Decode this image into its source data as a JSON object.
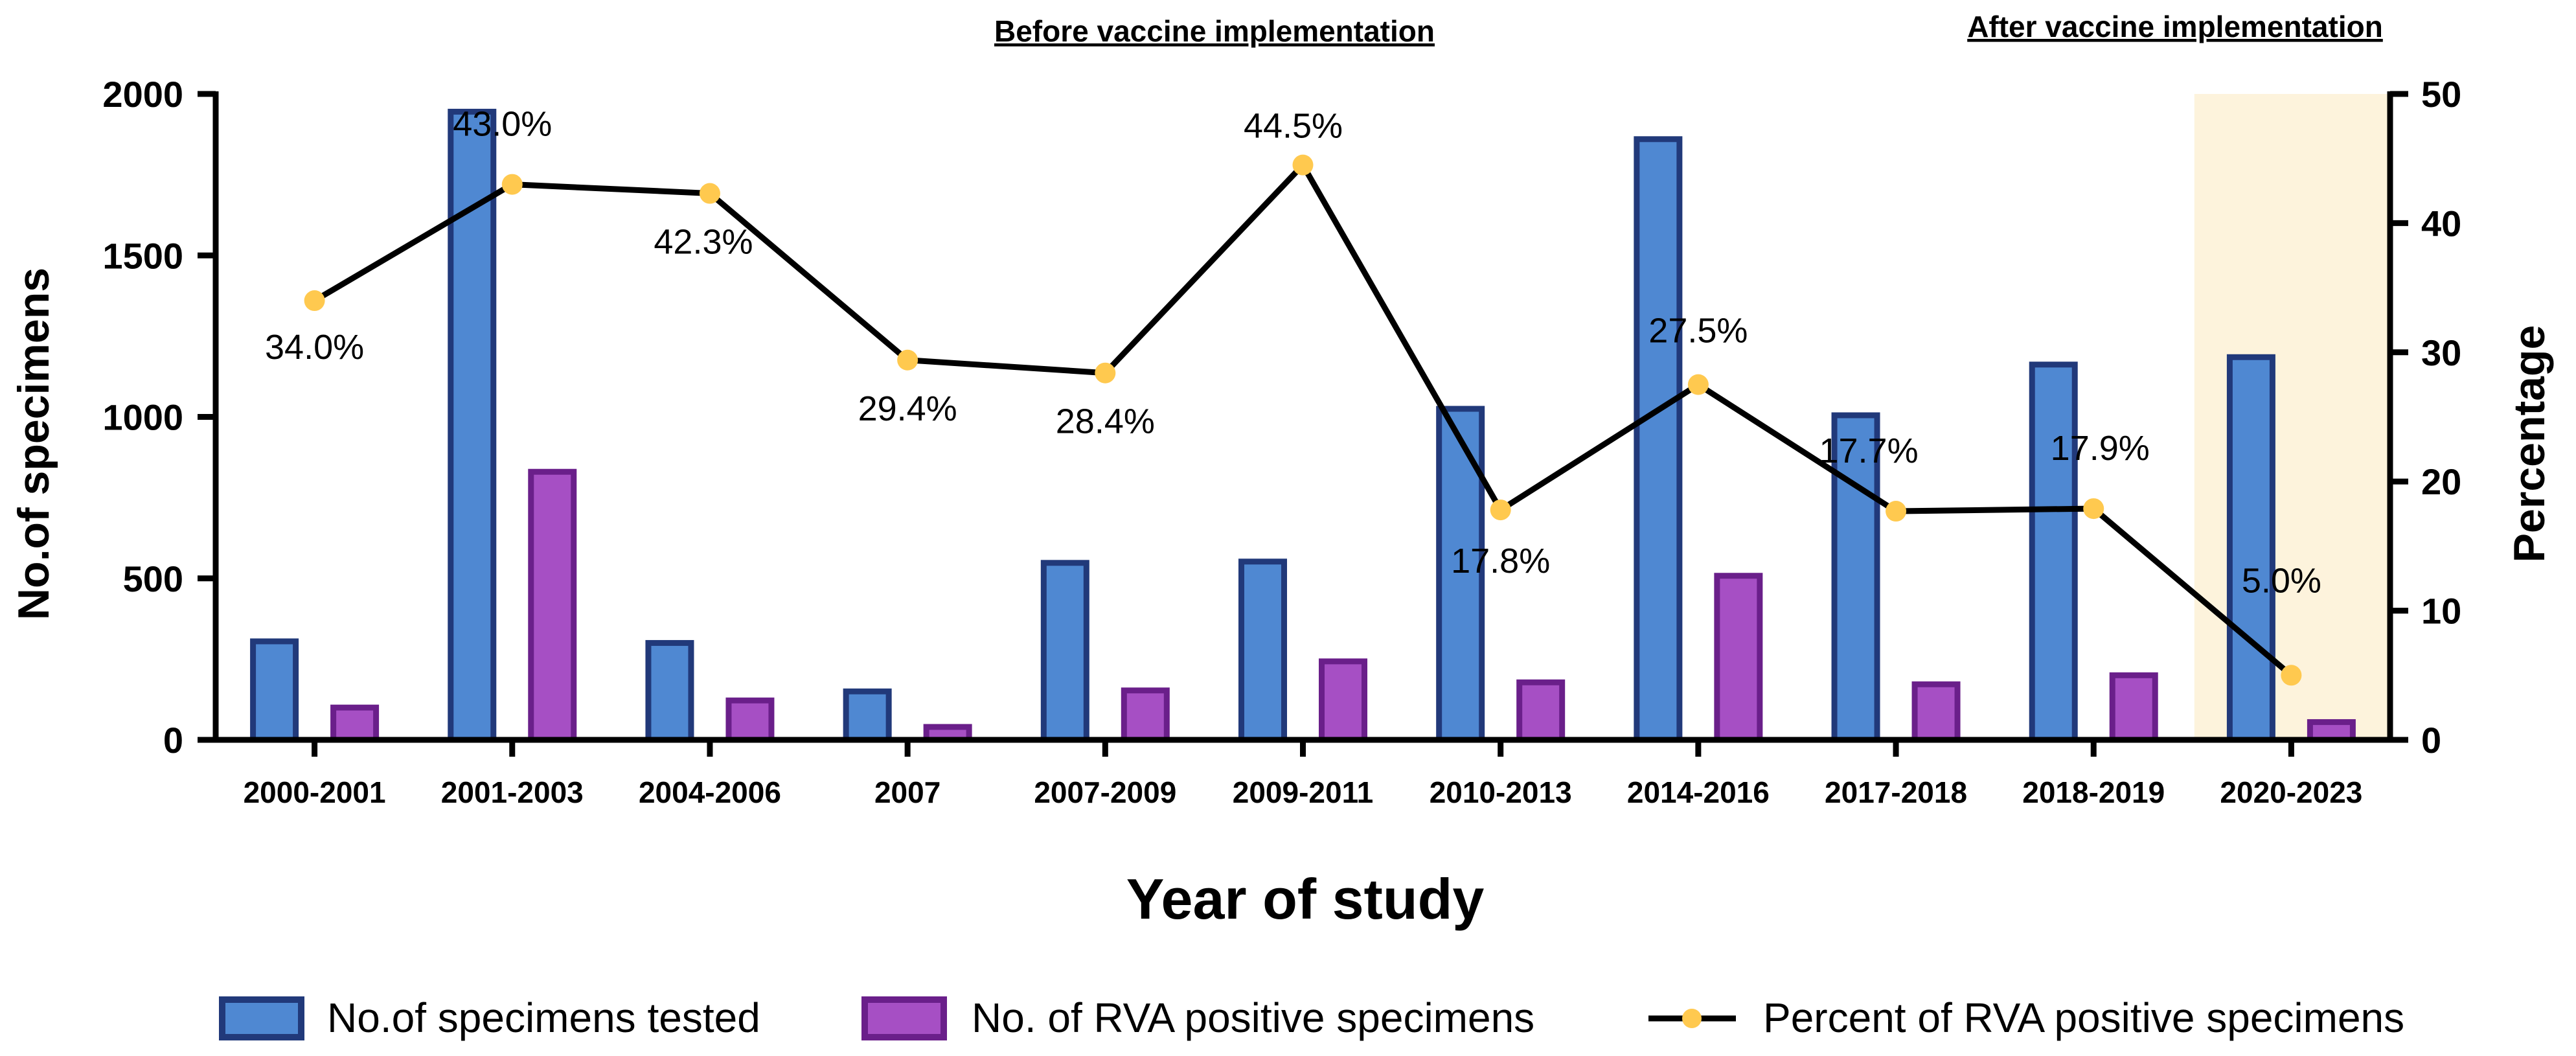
{
  "chart_data": {
    "type": "bar+line",
    "title": "",
    "period_labels": {
      "before": "Before vaccine implementation",
      "after": "After vaccine implementation"
    },
    "xlabel": "Year of study",
    "ylabel_left": "No.of specimens",
    "ylabel_right": "Percentage",
    "categories": [
      "2000-2001",
      "2001-2003",
      "2004-2006",
      "2007",
      "2007-2009",
      "2009-2011",
      "2010-2013",
      "2014-2016",
      "2017-2018",
      "2018-2019",
      "2020-2023"
    ],
    "ylim_left": [
      0,
      2000
    ],
    "ylim_right": [
      0,
      50
    ],
    "yticks_left": [
      "0",
      "500",
      "1000",
      "1500",
      "2000"
    ],
    "yticks_right": [
      "0",
      "10",
      "20",
      "30",
      "40",
      "50"
    ],
    "highlight_category": "2020-2023",
    "series": [
      {
        "name": "No.of specimens tested",
        "type": "bar",
        "axis": "left",
        "fill": "#4f88d2",
        "stroke": "#21397a",
        "values": [
          305,
          1945,
          300,
          150,
          548,
          552,
          1025,
          1860,
          1005,
          1162,
          1185
        ]
      },
      {
        "name": "No. of RVA positive specimens",
        "type": "bar",
        "axis": "left",
        "fill": "#a64fc4",
        "stroke": "#6a1f8a",
        "values": [
          100,
          830,
          122,
          40,
          153,
          243,
          178,
          508,
          172,
          200,
          55
        ]
      },
      {
        "name": "Percent of RVA positive specimens",
        "type": "line",
        "axis": "right",
        "line_color": "#000000",
        "marker_color": "#ffc94f",
        "values": [
          34.0,
          43.0,
          42.3,
          29.4,
          28.4,
          44.5,
          17.8,
          27.5,
          17.7,
          17.9,
          5.0
        ],
        "labels": [
          "34.0%",
          "43.0%",
          "42.3%",
          "29.4%",
          "28.4%",
          "44.5%",
          "17.8%",
          "27.5%",
          "17.7%",
          "17.9%",
          "5.0%"
        ]
      }
    ],
    "highlight_color": "#fdf3dc",
    "legend_position": "bottom"
  }
}
